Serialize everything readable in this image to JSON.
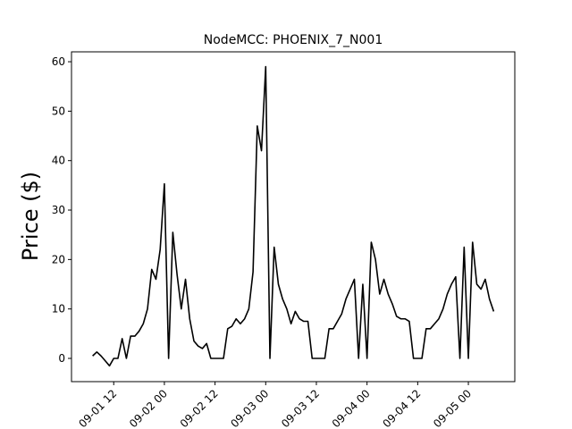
{
  "chart_data": {
    "type": "line",
    "title": "NodeMCC: PHOENIX_7_N001",
    "ylabel": "Price ($)",
    "x": [
      "09-01 07",
      "09-01 08",
      "09-01 09",
      "09-01 10",
      "09-01 11",
      "09-01 12",
      "09-01 13",
      "09-01 14",
      "09-01 15",
      "09-01 16",
      "09-01 17",
      "09-01 18",
      "09-01 19",
      "09-01 20",
      "09-01 21",
      "09-01 22",
      "09-01 23",
      "09-02 00",
      "09-02 01",
      "09-02 02",
      "09-02 03",
      "09-02 04",
      "09-02 05",
      "09-02 06",
      "09-02 07",
      "09-02 08",
      "09-02 09",
      "09-02 10",
      "09-02 11",
      "09-02 12",
      "09-02 13",
      "09-02 14",
      "09-02 15",
      "09-02 16",
      "09-02 17",
      "09-02 18",
      "09-02 19",
      "09-02 20",
      "09-02 21",
      "09-02 22",
      "09-02 23",
      "09-03 00",
      "09-03 01",
      "09-03 02",
      "09-03 03",
      "09-03 04",
      "09-03 05",
      "09-03 06",
      "09-03 07",
      "09-03 08",
      "09-03 09",
      "09-03 10",
      "09-03 11",
      "09-03 12",
      "09-03 13",
      "09-03 14",
      "09-03 15",
      "09-03 16",
      "09-03 17",
      "09-03 18",
      "09-03 19",
      "09-03 20",
      "09-03 21",
      "09-03 22",
      "09-03 23",
      "09-04 00",
      "09-04 01",
      "09-04 02",
      "09-04 03",
      "09-04 04",
      "09-04 05",
      "09-04 06",
      "09-04 07",
      "09-04 08",
      "09-04 09",
      "09-04 10",
      "09-04 11",
      "09-04 12",
      "09-04 13",
      "09-04 14",
      "09-04 15",
      "09-04 16",
      "09-04 17",
      "09-04 18",
      "09-04 19",
      "09-04 20",
      "09-04 21",
      "09-04 22",
      "09-04 23",
      "09-05 00",
      "09-05 01",
      "09-05 02",
      "09-05 03",
      "09-05 04",
      "09-05 05",
      "09-05 06"
    ],
    "series": [
      {
        "name": "PHOENIX_7_N001",
        "color": "#000000",
        "values": [
          0.5,
          1.3,
          0.5,
          -0.5,
          -1.5,
          0,
          0,
          4,
          0,
          4.5,
          4.5,
          5.5,
          7,
          10,
          18,
          16,
          22,
          35.3,
          0,
          25.5,
          17,
          10,
          16,
          8,
          3.5,
          2.5,
          2,
          3,
          0,
          0,
          0,
          0,
          6,
          6.5,
          8,
          7,
          8,
          10,
          17.5,
          47,
          42,
          59,
          0,
          22.5,
          15,
          12,
          10,
          7,
          9.5,
          8,
          7.5,
          7.5,
          0,
          0,
          0,
          0,
          6,
          6,
          7.5,
          9,
          12,
          14,
          16,
          0,
          15,
          0,
          23.5,
          20,
          13,
          16,
          13,
          11,
          8.5,
          8,
          8,
          7.5,
          0,
          0,
          0,
          6,
          6,
          7,
          8,
          10,
          13,
          15,
          16.5,
          0,
          22.5,
          0,
          23.5,
          15,
          14,
          16,
          12,
          9.5
        ]
      }
    ],
    "xlim": [
      "09-01 02",
      "09-05 11"
    ],
    "xticks": [
      "09-01 12",
      "09-02 00",
      "09-02 12",
      "09-03 00",
      "09-03 12",
      "09-04 00",
      "09-04 12",
      "09-05 00"
    ],
    "ylim": [
      -4.7,
      62
    ],
    "yticks": [
      0,
      10,
      20,
      30,
      40,
      50,
      60
    ]
  }
}
